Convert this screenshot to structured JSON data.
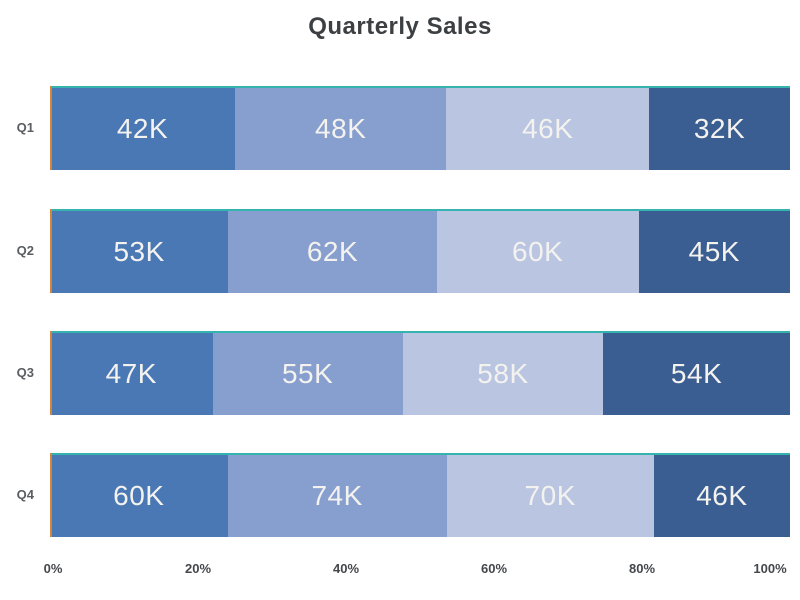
{
  "chart_data": {
    "type": "bar",
    "orientation": "horizontal",
    "stacking": "percent",
    "title": "Quarterly Sales",
    "categories": [
      "Q1",
      "Q2",
      "Q3",
      "Q4"
    ],
    "series": [
      {
        "color": "#4978b4",
        "values": [
          42,
          53,
          47,
          60
        ],
        "labels": [
          "42K",
          "53K",
          "47K",
          "60K"
        ]
      },
      {
        "color": "#879fce",
        "values": [
          48,
          62,
          55,
          74
        ],
        "labels": [
          "48K",
          "62K",
          "55K",
          "74K"
        ]
      },
      {
        "color": "#b9c5e1",
        "values": [
          46,
          60,
          58,
          70
        ],
        "labels": [
          "46K",
          "60K",
          "58K",
          "70K"
        ]
      },
      {
        "color": "#3a5e92",
        "values": [
          32,
          45,
          54,
          46
        ],
        "labels": [
          "32K",
          "45K",
          "54K",
          "46K"
        ]
      }
    ],
    "x_axis": {
      "ticks": [
        "0%",
        "20%",
        "40%",
        "60%",
        "80%",
        "100%"
      ],
      "range": [
        0,
        100
      ]
    },
    "value_suffix": "K",
    "legend": "none",
    "grid": "off",
    "colors": {
      "bar_top_border": "#35b3ae",
      "axis_left_line": "#d2853b",
      "title_text": "#3d4043",
      "category_label": "#5a5d61",
      "tick_label": "#44474b",
      "value_label": "#f4f2ef",
      "background": "#ffffff"
    }
  }
}
